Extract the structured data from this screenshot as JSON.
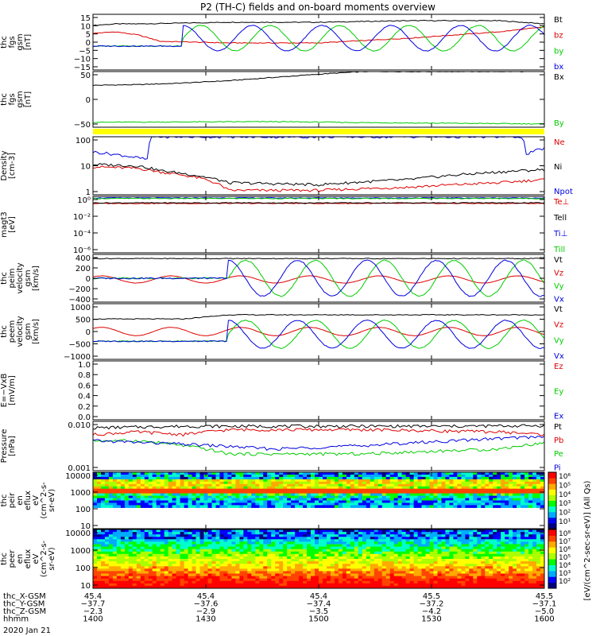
{
  "title": "P2 (TH-C) fields and on-board moments overview",
  "time_axis": {
    "tick_labels": [
      "1400",
      "1430",
      "1500",
      "1530",
      "1600"
    ],
    "rows": [
      {
        "name": "thc_X-GSM",
        "values": [
          "45.4",
          "45.4",
          "45.4",
          "45.5",
          "45.5"
        ]
      },
      {
        "name": "thc_Y-GSM",
        "values": [
          "−37.7",
          "−37.6",
          "−37.4",
          "−37.2",
          "−37.1"
        ]
      },
      {
        "name": "thc_Z-GSM",
        "values": [
          "−2.3",
          "−2.9",
          "−3.5",
          "−4.2",
          "−5.0"
        ]
      },
      {
        "name": "hhmm",
        "values": [
          "",
          "",
          "",
          "",
          ""
        ]
      }
    ],
    "date": "2020 Jan 21"
  },
  "colorbar": {
    "label": "[eV/(cm^2-sec-sr-eV)] (All Qs)",
    "colors": [
      "#000080",
      "#0000ff",
      "#00aaff",
      "#00ffcc",
      "#00ff00",
      "#aaff00",
      "#ffff00",
      "#ffaa00",
      "#ff4400",
      "#ff0000"
    ]
  },
  "colors": {
    "black": "#000000",
    "red": "#dd0000",
    "green": "#00cc00",
    "blue": "#0000dd",
    "yellow": "#ffff00"
  },
  "chart_data": [
    {
      "type": "line",
      "id": "fgs",
      "ylabel": [
        "thc",
        "fgs",
        "gsm",
        "[nT]"
      ],
      "ylim": [
        -20,
        15
      ],
      "yticks": [
        "15",
        "10",
        "5",
        "0",
        "−5",
        "−10",
        "−15"
      ],
      "series": [
        {
          "name": "Bt",
          "color": "#000000",
          "x": [
            0,
            0.05,
            0.1,
            0.3,
            0.5,
            0.7,
            0.9,
            0.95,
            1
          ],
          "y": [
            8,
            9,
            9,
            10,
            10,
            11,
            11,
            10,
            9
          ]
        },
        {
          "name": "bz",
          "color": "#dd0000",
          "x": [
            0,
            0.05,
            0.1,
            0.15,
            0.3,
            0.5,
            0.7,
            0.9,
            1
          ],
          "y": [
            3,
            4,
            2,
            -2,
            -3,
            -3,
            0,
            4,
            7
          ]
        },
        {
          "name": "by",
          "color": "#00cc00",
          "wave": {
            "amp": 8,
            "offset": 0,
            "phase": 0,
            "start": 0.2,
            "base": -5
          }
        },
        {
          "name": "bx",
          "color": "#0000dd",
          "wave": {
            "amp": 8,
            "offset": 0,
            "phase": 1.6,
            "start": 0.2,
            "base": -5
          }
        }
      ]
    },
    {
      "type": "line",
      "id": "fgs_dsl",
      "ylabel": [
        "thc",
        "fgs",
        "gsm",
        "[nT]"
      ],
      "ylim": [
        -80,
        90
      ],
      "yticks": [
        "50",
        "0",
        "−50"
      ],
      "series": [
        {
          "name": "Bx",
          "color": "#000000",
          "x": [
            0,
            0.1,
            0.2,
            0.3,
            0.4,
            0.5,
            0.6,
            0.65,
            0.7,
            0.8,
            1
          ],
          "y": [
            48,
            50,
            55,
            62,
            72,
            82,
            90,
            90,
            90,
            90,
            90
          ]
        },
        {
          "name": "By",
          "color": "#00cc00",
          "x": [
            0,
            0.2,
            0.4,
            0.6,
            0.8,
            1
          ],
          "y": [
            -65,
            -64,
            -63,
            -66,
            -68,
            -70
          ]
        }
      ]
    },
    {
      "type": "line",
      "id": "density",
      "log": true,
      "ylabel": [
        "Density",
        "[cm-3]"
      ],
      "ylim": [
        1,
        200
      ],
      "yticks": [
        "100",
        "10",
        "1"
      ],
      "series": [
        {
          "name": "Ne",
          "color": "#dd0000",
          "x": [
            0,
            0.1,
            0.15,
            0.2,
            0.25,
            0.3,
            0.5,
            0.7,
            0.9,
            1
          ],
          "y": [
            13,
            11,
            8,
            6,
            4,
            1.5,
            1.5,
            2,
            3,
            4
          ]
        },
        {
          "name": "Ni",
          "color": "#000000",
          "x": [
            0,
            0.1,
            0.15,
            0.25,
            0.3,
            0.5,
            0.7,
            0.9,
            1
          ],
          "y": [
            16,
            14,
            9,
            5,
            3,
            2.5,
            4,
            8,
            10
          ]
        },
        {
          "name": "Npot",
          "color": "#0000dd",
          "x": [
            0,
            0.12,
            0.13,
            0.95,
            0.96,
            1
          ],
          "y": [
            50,
            25,
            200,
            200,
            40,
            70
          ]
        }
      ]
    },
    {
      "type": "line",
      "id": "temp",
      "log": true,
      "ylabel": [
        "magt3",
        "[eV]"
      ],
      "ylim": [
        1e-06,
        100
      ],
      "yticks": [
        "10⁰",
        "10⁻²",
        "10⁻⁴",
        "10⁻⁶"
      ],
      "series": [
        {
          "name": "Te⊥",
          "color": "#dd0000",
          "x": [
            0,
            1
          ],
          "y": [
            10,
            10
          ]
        },
        {
          "name": "Tell",
          "color": "#000000",
          "x": [
            0,
            1
          ],
          "y": [
            12,
            12
          ]
        },
        {
          "name": "Ti⊥",
          "color": "#0000dd",
          "x": [
            0,
            1
          ],
          "y": [
            60,
            60
          ]
        },
        {
          "name": "Till",
          "color": "#00cc00",
          "x": [
            0,
            1
          ],
          "y": [
            50,
            50
          ]
        }
      ]
    },
    {
      "type": "line",
      "id": "peim",
      "ylabel": [
        "thc",
        "peim",
        "velocity",
        "gsm",
        "[km/s]"
      ],
      "ylim": [
        -400,
        400
      ],
      "yticks": [
        "400",
        "200",
        "0",
        "−200",
        "−400"
      ],
      "series": [
        {
          "name": "Vt",
          "color": "#000000",
          "x": [
            0,
            1
          ],
          "y": [
            330,
            330
          ]
        },
        {
          "name": "Vz",
          "color": "#dd0000",
          "wave": {
            "amp": 60,
            "offset": -20,
            "phase": 0.8,
            "start": 0.0,
            "base": 0
          }
        },
        {
          "name": "Vy",
          "color": "#00cc00",
          "wave": {
            "amp": 300,
            "offset": 0,
            "phase": 0,
            "start": 0.3,
            "base": 0
          }
        },
        {
          "name": "Vx",
          "color": "#0000dd",
          "wave": {
            "amp": 300,
            "offset": 0,
            "phase": 1.6,
            "start": 0.3,
            "base": 0
          }
        }
      ]
    },
    {
      "type": "line",
      "id": "peem",
      "ylabel": [
        "thc",
        "peem",
        "velocity",
        "gsm",
        "[km/s]"
      ],
      "ylim": [
        -1000,
        1000
      ],
      "yticks": [
        "1000",
        "500",
        "0",
        "−500",
        "−1000"
      ],
      "series": [
        {
          "name": "Vt",
          "color": "#000000",
          "x": [
            0,
            0.2,
            0.3,
            1
          ],
          "y": [
            450,
            450,
            600,
            600
          ]
        },
        {
          "name": "Vz",
          "color": "#dd0000",
          "wave": {
            "amp": 150,
            "offset": 0,
            "phase": 0.8,
            "start": 0.0,
            "base": 0
          }
        },
        {
          "name": "Vy",
          "color": "#00cc00",
          "wave": {
            "amp": 500,
            "offset": -100,
            "phase": 0,
            "start": 0.3,
            "base": -350
          }
        },
        {
          "name": "Vx",
          "color": "#0000dd",
          "wave": {
            "amp": 500,
            "offset": -100,
            "phase": 1.6,
            "start": 0.3,
            "base": -350
          }
        }
      ]
    },
    {
      "type": "line",
      "id": "efield",
      "ylabel": [
        "E=−VxB",
        "[mV/m]"
      ],
      "ylim": [
        0,
        1
      ],
      "yticks": [
        "1.0",
        "0.8",
        "0.6",
        "0.4",
        "0.2",
        "0.0"
      ],
      "series": [
        {
          "name": "Ez",
          "color": "#dd0000",
          "x": [],
          "y": []
        },
        {
          "name": "Ey",
          "color": "#00cc00",
          "x": [],
          "y": []
        },
        {
          "name": "Ex",
          "color": "#0000dd",
          "x": [],
          "y": []
        }
      ]
    },
    {
      "type": "line",
      "id": "pressure",
      "log": true,
      "ylabel": [
        "Pressure",
        "[nPa]"
      ],
      "ylim": [
        0.001,
        0.06
      ],
      "yticks": [
        "0.010",
        "0.001"
      ],
      "series": [
        {
          "name": "Pt",
          "color": "#000000",
          "x": [
            0,
            0.2,
            0.5,
            0.8,
            1
          ],
          "y": [
            0.035,
            0.04,
            0.04,
            0.04,
            0.042
          ]
        },
        {
          "name": "Pb",
          "color": "#dd0000",
          "x": [
            0,
            0.1,
            0.2,
            0.3,
            0.6,
            0.9,
            1
          ],
          "y": [
            0.02,
            0.025,
            0.02,
            0.03,
            0.03,
            0.025,
            0.02
          ]
        },
        {
          "name": "Pe",
          "color": "#00cc00",
          "x": [
            0,
            0.1,
            0.2,
            0.3,
            0.6,
            0.9,
            1
          ],
          "y": [
            0.012,
            0.012,
            0.008,
            0.004,
            0.004,
            0.006,
            0.01
          ]
        },
        {
          "name": "Pi",
          "color": "#0000dd",
          "x": [
            0,
            0.2,
            0.4,
            0.6,
            0.8,
            1
          ],
          "y": [
            0.012,
            0.009,
            0.006,
            0.008,
            0.012,
            0.017
          ]
        }
      ]
    },
    {
      "type": "heatmap",
      "id": "peir",
      "ylabel": [
        "thc",
        "peir",
        "en",
        "eflux",
        "eV",
        "(cm^2-s-",
        "sr-eV)"
      ],
      "ylim": [
        5,
        20000
      ],
      "yticks": [
        "10000",
        "1000",
        "100",
        "10"
      ],
      "colorbar_ticks": [
        "10⁶",
        "10⁵",
        "10⁴",
        "10³",
        "10²",
        "10¹"
      ]
    },
    {
      "type": "heatmap",
      "id": "peer",
      "ylabel": [
        "thc",
        "peer",
        "en",
        "eflux",
        "eV",
        "(cm^2-s-",
        "sr-eV)"
      ],
      "ylim": [
        5,
        20000
      ],
      "yticks": [
        "10000",
        "1000",
        "100",
        "10"
      ],
      "colorbar_ticks": [
        "10⁸",
        "10⁷",
        "10⁶",
        "10⁵",
        "10⁴",
        "10³",
        "10²"
      ]
    }
  ]
}
